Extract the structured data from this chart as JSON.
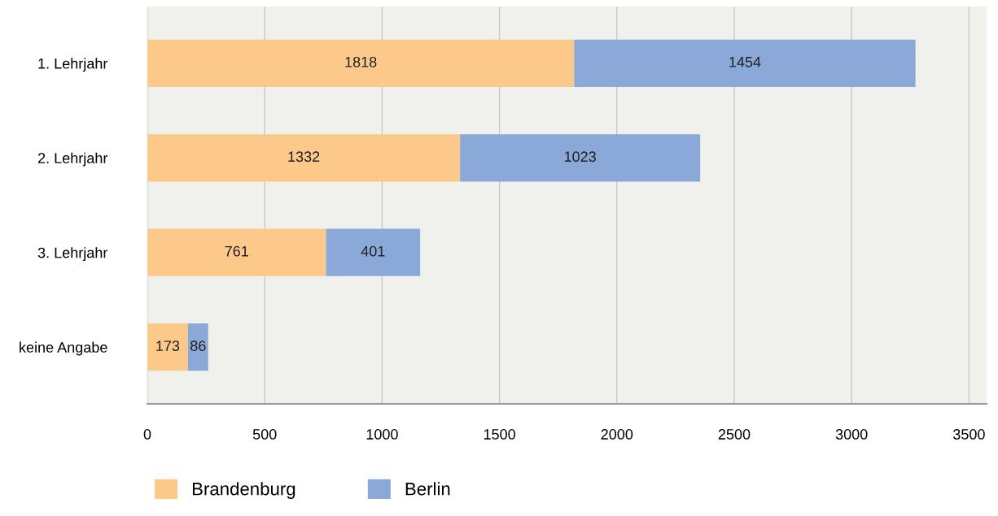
{
  "chart_data": {
    "type": "bar",
    "orientation": "horizontal",
    "stacked": true,
    "categories": [
      "1. Lehrjahr",
      "2. Lehrjahr",
      "3. Lehrjahr",
      "keine Angabe"
    ],
    "series": [
      {
        "name": "Brandenburg",
        "color": "#fcc98b",
        "values": [
          1818,
          1332,
          761,
          173
        ]
      },
      {
        "name": "Berlin",
        "color": "#8aa9d8",
        "values": [
          1454,
          1023,
          401,
          86
        ]
      }
    ],
    "xlim": [
      0,
      3575
    ],
    "xticks": [
      0,
      500,
      1000,
      1500,
      2000,
      2500,
      3000,
      3500
    ],
    "grid": "x",
    "legend": "bottom",
    "data_labels": true
  }
}
